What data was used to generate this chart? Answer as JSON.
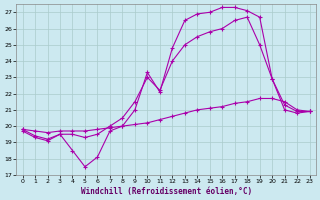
{
  "background_color": "#cce9f0",
  "grid_color": "#aacccc",
  "line_color": "#aa00aa",
  "marker": "+",
  "markersize": 3,
  "linewidth": 0.8,
  "xlabel": "Windchill (Refroidissement éolien,°C)",
  "xlim": [
    -0.5,
    23.5
  ],
  "ylim": [
    17,
    27.5
  ],
  "yticks": [
    17,
    18,
    19,
    20,
    21,
    22,
    23,
    24,
    25,
    26,
    27
  ],
  "xticks": [
    0,
    1,
    2,
    3,
    4,
    5,
    6,
    7,
    8,
    9,
    10,
    11,
    12,
    13,
    14,
    15,
    16,
    17,
    18,
    19,
    20,
    21,
    22,
    23
  ],
  "lines": [
    {
      "x": [
        0,
        1,
        2,
        3,
        4,
        5,
        6,
        7,
        8,
        9,
        10,
        11,
        12,
        13,
        14,
        15,
        16,
        17,
        18,
        19,
        20,
        21,
        22,
        23
      ],
      "y": [
        19.7,
        19.3,
        19.1,
        19.5,
        18.5,
        17.5,
        18.1,
        19.7,
        20.0,
        21.0,
        23.3,
        22.1,
        24.8,
        26.5,
        26.9,
        27.0,
        27.3,
        27.3,
        27.1,
        26.7,
        22.9,
        21.0,
        20.8,
        20.9
      ]
    },
    {
      "x": [
        0,
        1,
        2,
        3,
        4,
        5,
        6,
        7,
        8,
        9,
        10,
        11,
        12,
        13,
        14,
        15,
        16,
        17,
        18,
        19,
        20,
        21,
        22,
        23
      ],
      "y": [
        19.8,
        19.4,
        19.2,
        19.5,
        19.5,
        19.3,
        19.5,
        20.0,
        20.5,
        21.5,
        23.0,
        22.2,
        24.0,
        25.0,
        25.5,
        25.8,
        26.0,
        26.5,
        26.7,
        25.0,
        22.9,
        21.3,
        20.9,
        20.9
      ]
    },
    {
      "x": [
        0,
        1,
        2,
        3,
        4,
        5,
        6,
        7,
        8,
        9,
        10,
        11,
        12,
        13,
        14,
        15,
        16,
        17,
        18,
        19,
        20,
        21,
        22,
        23
      ],
      "y": [
        19.8,
        19.7,
        19.6,
        19.7,
        19.7,
        19.7,
        19.8,
        19.9,
        20.0,
        20.1,
        20.2,
        20.4,
        20.6,
        20.8,
        21.0,
        21.1,
        21.2,
        21.4,
        21.5,
        21.7,
        21.7,
        21.5,
        21.0,
        20.9
      ]
    }
  ]
}
